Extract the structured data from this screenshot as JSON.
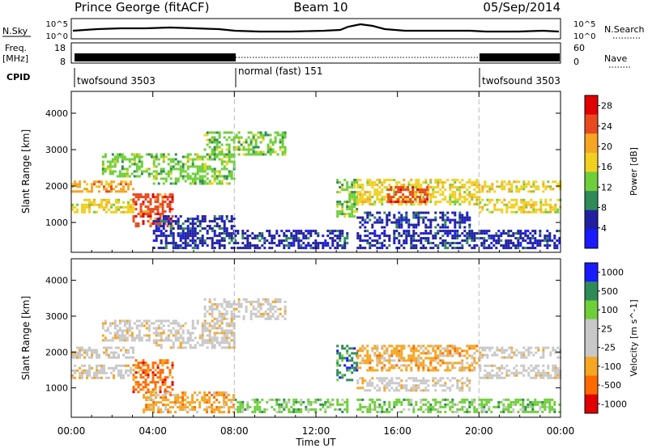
{
  "header": {
    "station": "Prince George (fitACF)",
    "beam": "Beam 10",
    "date": "05/Sep/2014"
  },
  "noise_panel": {
    "left_label": "N.Sky",
    "right_label": "N.Search",
    "left_ticks": [
      "10^5",
      "10^0"
    ],
    "right_ticks": [
      "10^5",
      "10^0"
    ]
  },
  "freq_panel": {
    "left_label": "Freq.",
    "left_unit": "[MHz]",
    "right_label": "Nave",
    "left_ticks": [
      "18",
      "8"
    ],
    "right_ticks": [
      "60",
      "0"
    ]
  },
  "cpid": {
    "label": "CPID",
    "segments": [
      {
        "name": "twofsound 3503",
        "start_h": 0,
        "end_h": 8
      },
      {
        "name": "normal (fast) 151",
        "start_h": 8,
        "end_h": 20
      },
      {
        "name": "twofsound 3503",
        "start_h": 20,
        "end_h": 24
      }
    ]
  },
  "x_axis": {
    "label": "Time UT",
    "ticks": [
      "00:00",
      "04:00",
      "08:00",
      "12:00",
      "16:00",
      "20:00",
      "00:00"
    ],
    "range_h": [
      0,
      24
    ]
  },
  "colors": {
    "power": [
      "#1a1aff",
      "#2020a0",
      "#2e8b57",
      "#6fcf3a",
      "#f0d020",
      "#f5a623",
      "#e84a20",
      "#e00000"
    ],
    "velocity": [
      "#e00000",
      "#ff6a00",
      "#f5a623",
      "#c8c8c8",
      "#c8c8c8",
      "#6fcf3a",
      "#2e8b57",
      "#1a1aff"
    ],
    "ground_scatter": "#bebebe"
  },
  "chart_data": [
    {
      "type": "heatmap",
      "title": "Power",
      "xlabel": "Time UT",
      "ylabel": "Slant Range [km]",
      "xlim_h": [
        0,
        24
      ],
      "ylim_km": [
        180,
        4600
      ],
      "y_ticks": [
        "1000",
        "2000",
        "3000",
        "4000"
      ],
      "colorbar": {
        "label": "Power [dB]",
        "range": [
          0,
          30
        ],
        "ticks": [
          "4",
          "8",
          "12",
          "16",
          "20",
          "24",
          "28"
        ]
      },
      "regions": [
        {
          "t": [
            0.0,
            3.0
          ],
          "r": [
            1850,
            2150
          ],
          "level": 5
        },
        {
          "t": [
            0.0,
            3.0
          ],
          "r": [
            1300,
            1650
          ],
          "level": 4
        },
        {
          "t": [
            1.5,
            4.0
          ],
          "r": [
            2300,
            2900
          ],
          "level": 3
        },
        {
          "t": [
            3.0,
            5.0
          ],
          "r": [
            900,
            1800
          ],
          "level": 6
        },
        {
          "t": [
            4.0,
            8.0
          ],
          "r": [
            2100,
            2900
          ],
          "level": 3
        },
        {
          "t": [
            4.0,
            8.0
          ],
          "r": [
            300,
            1200
          ],
          "level": 1
        },
        {
          "t": [
            6.5,
            10.5
          ],
          "r": [
            2900,
            3500
          ],
          "level": 3
        },
        {
          "t": [
            8.0,
            13.5
          ],
          "r": [
            300,
            800
          ],
          "level": 1
        },
        {
          "t": [
            13.0,
            14.0
          ],
          "r": [
            1200,
            2200
          ],
          "level": 3
        },
        {
          "t": [
            14.0,
            20.0
          ],
          "r": [
            1500,
            2200
          ],
          "level": 4
        },
        {
          "t": [
            15.5,
            17.5
          ],
          "r": [
            1600,
            2000
          ],
          "level": 6
        },
        {
          "t": [
            14.0,
            19.5
          ],
          "r": [
            900,
            1300
          ],
          "level": 1
        },
        {
          "t": [
            20.0,
            24.0
          ],
          "r": [
            1850,
            2150
          ],
          "level": 4
        },
        {
          "t": [
            20.0,
            24.0
          ],
          "r": [
            1300,
            1650
          ],
          "level": 4
        },
        {
          "t": [
            14.0,
            24.0
          ],
          "r": [
            300,
            800
          ],
          "level": 1
        }
      ]
    },
    {
      "type": "heatmap",
      "title": "Velocity",
      "xlabel": "Time UT",
      "ylabel": "Slant Range [km]",
      "xlim_h": [
        0,
        24
      ],
      "ylim_km": [
        180,
        4600
      ],
      "y_ticks": [
        "1000",
        "2000",
        "3000",
        "4000"
      ],
      "colorbar": {
        "label": "Velocity [m s^-1]",
        "ticks": [
          "1000",
          "500",
          "100",
          "25",
          "-25",
          "-100",
          "-500",
          "-1000"
        ]
      },
      "regions": [
        {
          "t": [
            0.0,
            3.0
          ],
          "r": [
            1850,
            2150
          ],
          "level": 3
        },
        {
          "t": [
            0.0,
            3.0
          ],
          "r": [
            1300,
            1650
          ],
          "level": 3
        },
        {
          "t": [
            1.5,
            4.0
          ],
          "r": [
            2300,
            2900
          ],
          "level": 3
        },
        {
          "t": [
            3.0,
            5.0
          ],
          "r": [
            900,
            1800
          ],
          "level": 1
        },
        {
          "t": [
            4.0,
            8.0
          ],
          "r": [
            2100,
            2900
          ],
          "level": 3
        },
        {
          "t": [
            3.5,
            8.0
          ],
          "r": [
            300,
            900
          ],
          "level": 2
        },
        {
          "t": [
            6.5,
            10.5
          ],
          "r": [
            2900,
            3500
          ],
          "level": 3
        },
        {
          "t": [
            8.0,
            13.5
          ],
          "r": [
            300,
            700
          ],
          "level": 5
        },
        {
          "t": [
            13.0,
            14.0
          ],
          "r": [
            1200,
            2200
          ],
          "level": 6
        },
        {
          "t": [
            14.0,
            20.0
          ],
          "r": [
            1500,
            2200
          ],
          "level": 2
        },
        {
          "t": [
            14.0,
            19.5
          ],
          "r": [
            900,
            1300
          ],
          "level": 3
        },
        {
          "t": [
            20.0,
            24.0
          ],
          "r": [
            1850,
            2150
          ],
          "level": 3
        },
        {
          "t": [
            20.0,
            24.0
          ],
          "r": [
            1300,
            1650
          ],
          "level": 3
        },
        {
          "t": [
            14.0,
            24.0
          ],
          "r": [
            300,
            700
          ],
          "level": 5
        }
      ]
    }
  ]
}
